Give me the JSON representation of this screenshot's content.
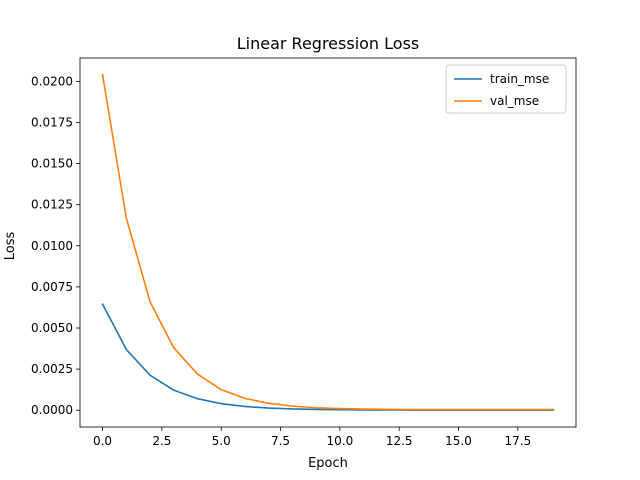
{
  "chart_data": {
    "type": "line",
    "title": "Linear Regression Loss",
    "xlabel": "Epoch",
    "ylabel": "Loss",
    "xlim": [
      -0.95,
      19.95
    ],
    "ylim": [
      -0.00102,
      0.02142
    ],
    "xticks": [
      0.0,
      2.5,
      5.0,
      7.5,
      10.0,
      12.5,
      15.0,
      17.5
    ],
    "xtick_labels": [
      "0.0",
      "2.5",
      "5.0",
      "7.5",
      "10.0",
      "12.5",
      "15.0",
      "17.5"
    ],
    "yticks": [
      0.0,
      0.0025,
      0.005,
      0.0075,
      0.01,
      0.0125,
      0.015,
      0.0175,
      0.02
    ],
    "ytick_labels": [
      "0.0000",
      "0.0025",
      "0.0050",
      "0.0075",
      "0.0100",
      "0.0125",
      "0.0150",
      "0.0175",
      "0.0200"
    ],
    "grid": false,
    "legend_position": "top-right",
    "x": [
      0,
      1,
      2,
      3,
      4,
      5,
      6,
      7,
      8,
      9,
      10,
      11,
      12,
      13,
      14,
      15,
      16,
      17,
      18,
      19
    ],
    "series": [
      {
        "name": "train_mse",
        "color": "#1f77b4",
        "values": [
          0.00645,
          0.0037,
          0.00213,
          0.00122,
          0.0007,
          0.0004,
          0.00023,
          0.00013,
          8e-05,
          5e-05,
          3e-05,
          2e-05,
          1.5e-05,
          1e-05,
          1e-05,
          1e-05,
          1e-05,
          1e-05,
          1e-05,
          1e-05
        ]
      },
      {
        "name": "val_mse",
        "color": "#ff7f0e",
        "values": [
          0.0204,
          0.0117,
          0.0066,
          0.0038,
          0.0022,
          0.00125,
          0.00072,
          0.00042,
          0.00025,
          0.00015,
          0.0001,
          7e-05,
          5e-05,
          4e-05,
          4e-05,
          4e-05,
          4e-05,
          4e-05,
          4e-05,
          4e-05
        ]
      }
    ]
  }
}
